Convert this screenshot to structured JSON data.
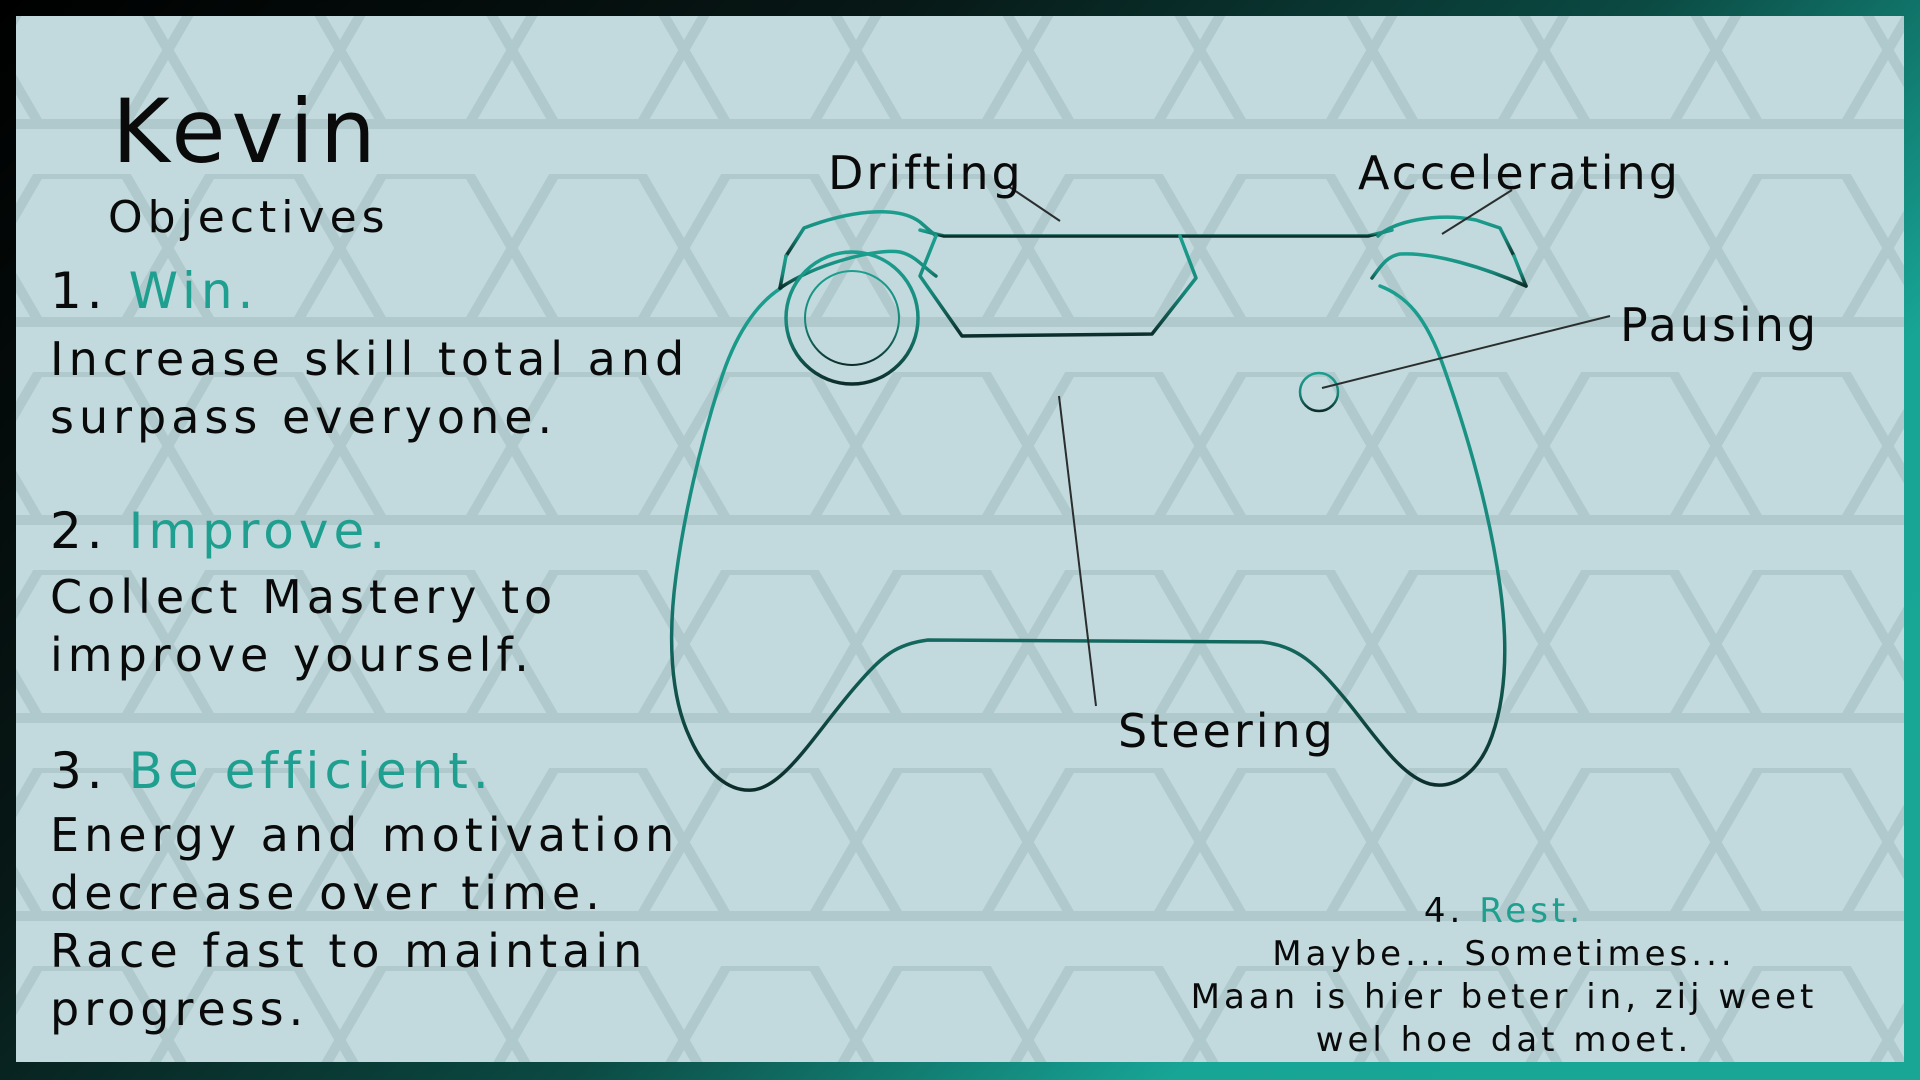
{
  "profile": {
    "name": "Kevin",
    "subtitle": "Objectives"
  },
  "objectives": [
    {
      "number": "1.",
      "title": "Win.",
      "lines": [
        "Increase skill total and",
        "surpass everyone."
      ]
    },
    {
      "number": "2.",
      "title": "Improve.",
      "lines": [
        "Collect Mastery to",
        "improve yourself."
      ]
    },
    {
      "number": "3.",
      "title": "Be efficient.",
      "lines": [
        "Energy and motivation",
        "decrease over time.",
        "Race fast to maintain",
        "progress."
      ]
    }
  ],
  "controls": {
    "drifting": "Drifting",
    "accelerating": "Accelerating",
    "pausing": "Pausing",
    "steering": "Steering"
  },
  "rest": {
    "number": "4.",
    "title": "Rest.",
    "lines": [
      "Maybe... Sometimes...",
      "Maan is hier beter in, zij weet",
      "wel hoe dat moet."
    ]
  },
  "colors": {
    "accent": "#1f9f90",
    "background": "#c2dadd",
    "text": "#0a0a0a"
  }
}
